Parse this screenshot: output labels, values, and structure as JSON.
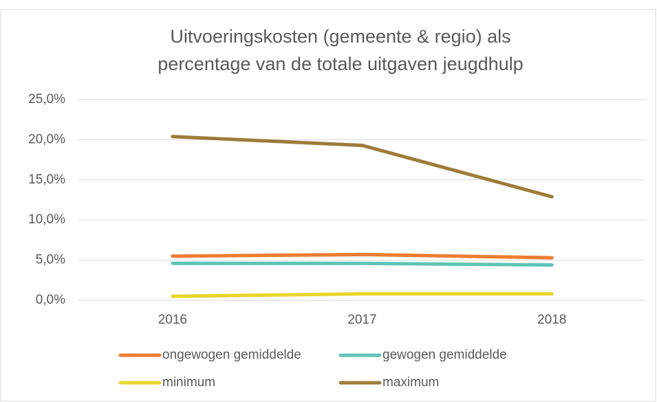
{
  "chart_data": {
    "type": "line",
    "title": [
      "Uitvoeringskosten (gemeente & regio) als",
      "percentage van de totale uitgaven jeugdhulp"
    ],
    "categories": [
      "2016",
      "2017",
      "2018"
    ],
    "series": [
      {
        "name": "ongewogen gemiddelde",
        "color": "#ed7d31",
        "values": [
          5.5,
          5.7,
          5.3
        ]
      },
      {
        "name": "gewogen gemiddelde",
        "color": "#5ec4b6",
        "values": [
          4.6,
          4.6,
          4.4
        ]
      },
      {
        "name": "minimum",
        "color": "#e8d52a",
        "values": [
          0.5,
          0.8,
          0.8
        ]
      },
      {
        "name": "maximum",
        "color": "#9e7b3a",
        "values": [
          20.4,
          19.3,
          12.9
        ]
      }
    ],
    "ylim": [
      0,
      25
    ],
    "yticks": [
      {
        "value": 0,
        "label": "0,0%"
      },
      {
        "value": 5,
        "label": "5,0%"
      },
      {
        "value": 10,
        "label": "10,0%"
      },
      {
        "value": 15,
        "label": "15,0%"
      },
      {
        "value": 20,
        "label": "20,0%"
      },
      {
        "value": 25,
        "label": "25,0%"
      }
    ],
    "grid": true
  }
}
